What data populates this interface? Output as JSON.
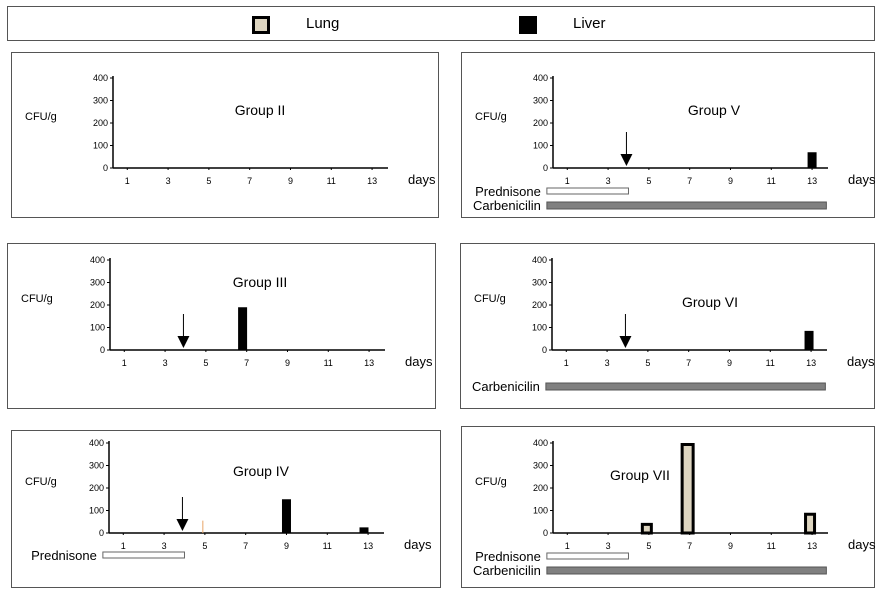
{
  "legend": {
    "items": [
      {
        "label": "Lung",
        "color": "#ddd5c0"
      },
      {
        "label": "Liver",
        "color": "#000000"
      }
    ]
  },
  "axis_labels": {
    "ylabel": "CFU/g",
    "xunit": "days",
    "yticks": [
      "0",
      "100",
      "200",
      "300",
      "400"
    ],
    "xticks": [
      "1",
      "3",
      "5",
      "7",
      "9",
      "11",
      "13"
    ]
  },
  "chart_data": [
    {
      "type": "bar",
      "title": "Group II",
      "ylabel": "CFU/g",
      "xlabel": "days",
      "ylim": [
        0,
        400
      ],
      "x_ticks": [
        1,
        3,
        5,
        7,
        9,
        11,
        13
      ],
      "series": [
        {
          "name": "Lung",
          "points": []
        },
        {
          "name": "Liver",
          "points": []
        }
      ],
      "treatment_arrow_day": null,
      "treatments": []
    },
    {
      "type": "bar",
      "title": "Group V",
      "ylabel": "CFU/g",
      "xlabel": "days",
      "ylim": [
        0,
        400
      ],
      "x_ticks": [
        1,
        3,
        5,
        7,
        9,
        11,
        13
      ],
      "series": [
        {
          "name": "Lung",
          "points": []
        },
        {
          "name": "Liver",
          "points": [
            {
              "x": 13,
              "y": 70
            }
          ]
        }
      ],
      "treatment_arrow_day": 3.9,
      "treatments": [
        {
          "name": "Prednisone",
          "start_day": 0,
          "end_day": 4,
          "style": "white"
        },
        {
          "name": "Carbenicilin",
          "start_day": 0,
          "end_day": 13.7,
          "style": "gray"
        }
      ]
    },
    {
      "type": "bar",
      "title": "Group III",
      "ylabel": "CFU/g",
      "xlabel": "days",
      "ylim": [
        0,
        400
      ],
      "x_ticks": [
        1,
        3,
        5,
        7,
        9,
        11,
        13
      ],
      "series": [
        {
          "name": "Lung",
          "points": []
        },
        {
          "name": "Liver",
          "points": [
            {
              "x": 6.8,
              "y": 190
            }
          ]
        }
      ],
      "treatment_arrow_day": 3.9,
      "treatments": []
    },
    {
      "type": "bar",
      "title": "Group VI",
      "ylabel": "CFU/g",
      "xlabel": "days",
      "ylim": [
        0,
        400
      ],
      "x_ticks": [
        1,
        3,
        5,
        7,
        9,
        11,
        13
      ],
      "series": [
        {
          "name": "Lung",
          "points": []
        },
        {
          "name": "Liver",
          "points": [
            {
              "x": 12.9,
              "y": 85
            }
          ]
        }
      ],
      "treatment_arrow_day": 3.9,
      "treatments": [
        {
          "name": "Carbenicilin",
          "start_day": 0,
          "end_day": 13.7,
          "style": "gray"
        }
      ]
    },
    {
      "type": "bar",
      "title": "Group IV",
      "ylabel": "CFU/g",
      "xlabel": "days",
      "ylim": [
        0,
        400
      ],
      "x_ticks": [
        1,
        3,
        5,
        7,
        9,
        11,
        13
      ],
      "series": [
        {
          "name": "Lung",
          "points": [
            {
              "x": 4.9,
              "y": 55
            }
          ]
        },
        {
          "name": "Liver",
          "points": [
            {
              "x": 9,
              "y": 150
            },
            {
              "x": 12.8,
              "y": 25
            }
          ]
        }
      ],
      "treatment_arrow_day": 3.9,
      "treatments": [
        {
          "name": "Prednisone",
          "start_day": 0,
          "end_day": 4,
          "style": "white"
        }
      ]
    },
    {
      "type": "bar",
      "title": "Group VII",
      "ylabel": "CFU/g",
      "xlabel": "days",
      "ylim": [
        0,
        400
      ],
      "x_ticks": [
        1,
        3,
        5,
        7,
        9,
        11,
        13
      ],
      "series": [
        {
          "name": "Lung",
          "points": [
            {
              "x": 4.9,
              "y": 45
            },
            {
              "x": 6.9,
              "y": 400
            },
            {
              "x": 12.9,
              "y": 90
            }
          ]
        },
        {
          "name": "Liver",
          "points": []
        }
      ],
      "treatment_arrow_day": null,
      "treatments": [
        {
          "name": "Prednisone",
          "start_day": 0,
          "end_day": 4,
          "style": "white"
        },
        {
          "name": "Carbenicilin",
          "start_day": 0,
          "end_day": 13.7,
          "style": "gray"
        }
      ]
    }
  ]
}
